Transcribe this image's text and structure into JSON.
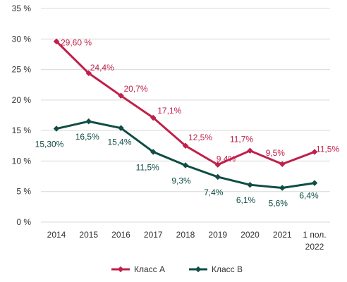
{
  "chart_data": {
    "type": "line",
    "categories": [
      "2014",
      "2015",
      "2016",
      "2017",
      "2018",
      "2019",
      "2020",
      "2021",
      "1 пол. 2022"
    ],
    "ylim": [
      0,
      35
    ],
    "yticks": [
      0,
      5,
      10,
      15,
      20,
      25,
      30,
      35
    ],
    "ytick_labels": [
      "0 %",
      "5 %",
      "10 %",
      "15 %",
      "20 %",
      "25 %",
      "30 %",
      "35 %"
    ],
    "grid": true,
    "legend_position": "bottom",
    "series": [
      {
        "name": "Класс А",
        "color": "#c0204a",
        "values": [
          29.6,
          24.4,
          20.7,
          17.1,
          12.5,
          9.4,
          11.7,
          9.5,
          11.5
        ],
        "labels": [
          "29,60 %",
          "24,4%",
          "20,7%",
          "17,1%",
          "12,5%",
          "9,4%",
          "11,7%",
          "9,5%",
          "11,5%"
        ]
      },
      {
        "name": "Класс В",
        "color": "#0f4d45",
        "values": [
          15.3,
          16.5,
          15.4,
          11.5,
          9.3,
          7.4,
          6.1,
          5.6,
          6.4
        ],
        "labels": [
          "15,30%",
          "16,5%",
          "15,4%",
          "11,5%",
          "9,3%",
          "7,4%",
          "6,1%",
          "5,6%",
          "6,4%"
        ]
      }
    ]
  }
}
